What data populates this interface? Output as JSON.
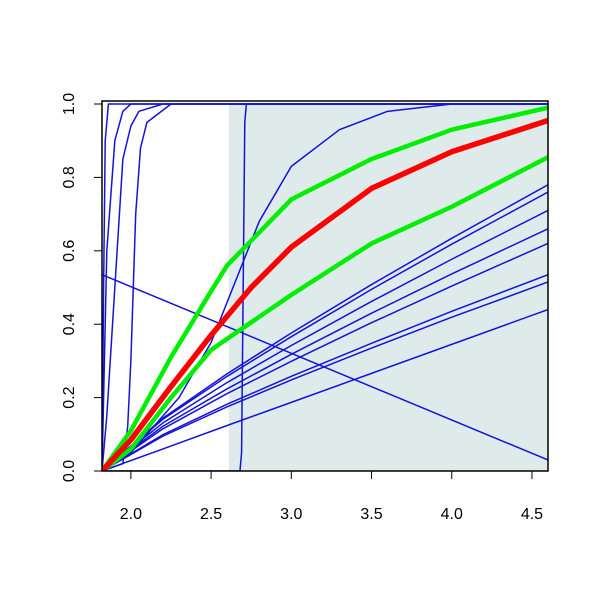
{
  "chart_data": {
    "type": "line",
    "xlim": [
      1.82,
      4.6
    ],
    "ylim": [
      0,
      1
    ],
    "xticks": [
      {
        "value": 2,
        "label": "2.0"
      },
      2.5,
      {
        "value": 3,
        "label": "3.0"
      },
      3.5,
      {
        "value": 4,
        "label": "4.0"
      },
      4.5
    ],
    "yticks": [
      {
        "value": 0,
        "label": "0.0"
      },
      0.2,
      0.4,
      0.6,
      0.8,
      {
        "value": 1,
        "label": "1.0"
      }
    ],
    "shade": {
      "xlim": [
        2.61,
        4.6
      ],
      "color": "#dfeaea"
    },
    "series": [
      {
        "color": "#1414d8",
        "linewidth": 1.5,
        "x": [
          1.82,
          1.83,
          1.84,
          1.86,
          2.0,
          4.6
        ],
        "values": [
          0,
          0.5,
          0.9,
          1,
          1,
          1
        ]
      },
      {
        "color": "#1414d8",
        "linewidth": 1.5,
        "x": [
          1.82,
          1.85,
          1.9,
          1.95,
          2.0,
          4.6
        ],
        "values": [
          0,
          0.6,
          0.9,
          0.98,
          1,
          1
        ]
      },
      {
        "color": "#1414d8",
        "linewidth": 1.5,
        "x": [
          1.82,
          1.85,
          1.9,
          1.95,
          2.0,
          2.05,
          2.2,
          4.6
        ],
        "values": [
          0,
          0.15,
          0.5,
          0.85,
          0.94,
          0.98,
          1,
          1
        ]
      },
      {
        "color": "#1414d8",
        "linewidth": 1.5,
        "x": [
          1.82,
          1.95,
          1.98,
          2.0,
          2.03,
          2.06,
          2.1,
          2.25,
          4.6
        ],
        "values": [
          0,
          0.02,
          0.12,
          0.3,
          0.7,
          0.88,
          0.95,
          1,
          1
        ]
      },
      {
        "color": "#1414d8",
        "linewidth": 1.5,
        "x": [
          1.82,
          2.68,
          2.69,
          2.7,
          2.71,
          2.72,
          4.6
        ],
        "values": [
          0,
          0,
          0.05,
          0.5,
          0.95,
          1,
          1
        ]
      },
      {
        "color": "#1414d8",
        "linewidth": 1.5,
        "x": [
          1.82,
          2.0,
          2.3,
          2.5,
          2.8,
          3.0,
          3.3,
          3.6,
          4.0,
          4.6
        ],
        "values": [
          0,
          0.05,
          0.2,
          0.35,
          0.68,
          0.83,
          0.93,
          0.98,
          1,
          1
        ]
      },
      {
        "color": "#1414d8",
        "linewidth": 1.5,
        "x": [
          1.82,
          4.6
        ],
        "values": [
          0.535,
          0.03
        ]
      },
      {
        "color": "#1414d8",
        "linewidth": 1.5,
        "x": [
          1.82,
          2.2,
          2.6,
          3.0,
          3.5,
          4.0,
          4.6
        ],
        "values": [
          0,
          0.144,
          0.265,
          0.376,
          0.508,
          0.634,
          0.78
        ]
      },
      {
        "color": "#1414d8",
        "linewidth": 1.5,
        "x": [
          1.82,
          2.2,
          2.6,
          3.0,
          3.5,
          4.0,
          4.6
        ],
        "values": [
          0,
          0.141,
          0.258,
          0.366,
          0.495,
          0.618,
          0.76
        ]
      },
      {
        "color": "#1414d8",
        "linewidth": 1.5,
        "x": [
          1.82,
          2.2,
          2.6,
          3.0,
          3.5,
          4.0,
          4.6
        ],
        "values": [
          0,
          0.131,
          0.241,
          0.342,
          0.462,
          0.577,
          0.71
        ]
      },
      {
        "color": "#1414d8",
        "linewidth": 1.5,
        "x": [
          1.82,
          2.2,
          2.6,
          3.0,
          3.5,
          4.0,
          4.6
        ],
        "values": [
          0,
          0.122,
          0.224,
          0.318,
          0.43,
          0.537,
          0.66
        ]
      },
      {
        "color": "#1414d8",
        "linewidth": 1.5,
        "x": [
          1.82,
          2.2,
          2.6,
          3.0,
          3.5,
          4.0,
          4.6
        ],
        "values": [
          0,
          0.115,
          0.211,
          0.299,
          0.404,
          0.504,
          0.62
        ]
      },
      {
        "color": "#1414d8",
        "linewidth": 1.5,
        "x": [
          1.82,
          2.2,
          2.6,
          3.0,
          3.5,
          4.0,
          4.6
        ],
        "values": [
          0,
          0.099,
          0.182,
          0.258,
          0.348,
          0.435,
          0.535
        ]
      },
      {
        "color": "#1414d8",
        "linewidth": 1.5,
        "x": [
          1.82,
          2.2,
          2.6,
          3.0,
          3.5,
          4.0,
          4.6
        ],
        "values": [
          0,
          0.095,
          0.175,
          0.248,
          0.335,
          0.419,
          0.515
        ]
      },
      {
        "color": "#1414d8",
        "linewidth": 1.5,
        "x": [
          1.82,
          2.2,
          2.6,
          3.0,
          3.5,
          4.0,
          4.6
        ],
        "values": [
          0,
          0.06,
          0.124,
          0.187,
          0.266,
          0.345,
          0.44
        ]
      },
      {
        "color": "#00ee00",
        "linewidth": 4.5,
        "x": [
          1.82,
          2.0,
          2.25,
          2.5,
          2.6,
          3.0,
          3.5,
          4.0,
          4.6
        ],
        "values": [
          0,
          0.11,
          0.31,
          0.49,
          0.56,
          0.74,
          0.85,
          0.93,
          0.99
        ]
      },
      {
        "color": "#00ee00",
        "linewidth": 4.5,
        "x": [
          1.82,
          2.0,
          2.25,
          2.5,
          3.0,
          3.5,
          4.0,
          4.6
        ],
        "values": [
          0,
          0.06,
          0.2,
          0.33,
          0.48,
          0.62,
          0.72,
          0.855
        ]
      },
      {
        "color": "#ff0000",
        "linewidth": 5.5,
        "x": [
          1.82,
          2.0,
          2.25,
          2.5,
          2.75,
          3.0,
          3.5,
          4.0,
          4.6
        ],
        "values": [
          0,
          0.085,
          0.23,
          0.37,
          0.5,
          0.61,
          0.77,
          0.87,
          0.955
        ]
      }
    ]
  }
}
